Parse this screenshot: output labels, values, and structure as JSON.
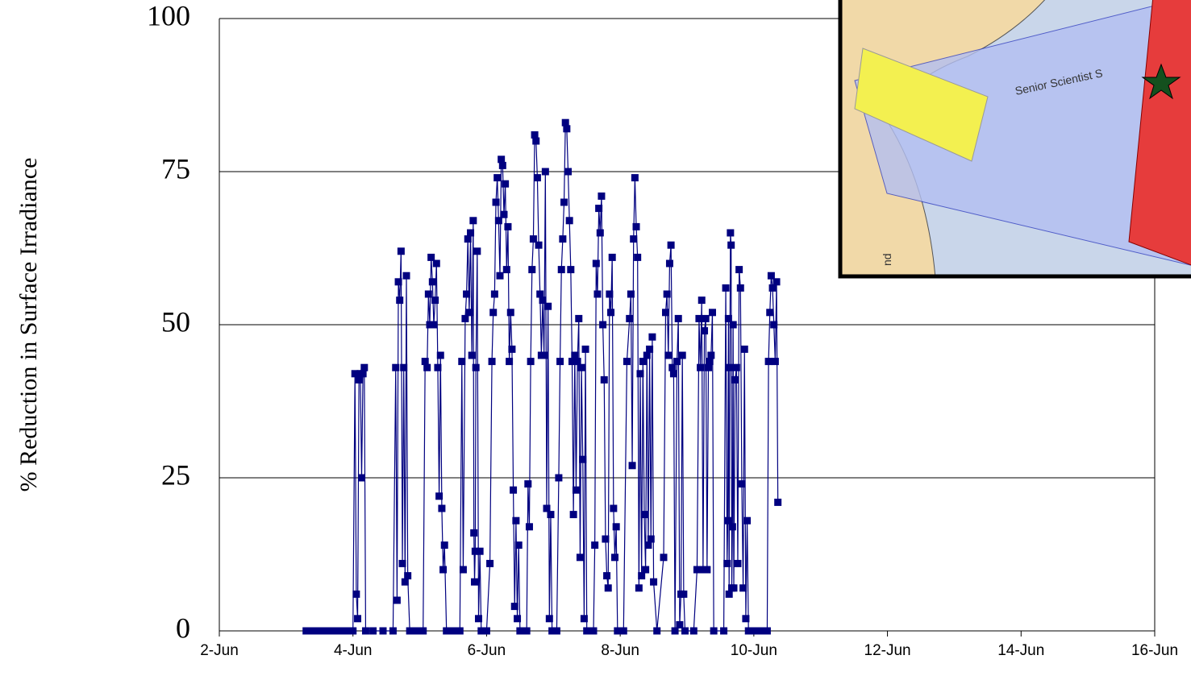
{
  "chart_data": {
    "type": "line",
    "ylabel": "% Reduction in Surface Irradiance",
    "xlim": [
      2,
      16
    ],
    "xticks": [
      {
        "value": 2,
        "label": "2-Jun"
      },
      {
        "value": 4,
        "label": "4-Jun"
      },
      {
        "value": 6,
        "label": "6-Jun"
      },
      {
        "value": 8,
        "label": "8-Jun"
      },
      {
        "value": 10,
        "label": "10-Jun"
      },
      {
        "value": 12,
        "label": "12-Jun"
      },
      {
        "value": 14,
        "label": "14-Jun"
      },
      {
        "value": 16,
        "label": "16-Jun"
      }
    ],
    "ylim": [
      0,
      100
    ],
    "yticks": [
      0,
      25,
      50,
      75,
      100
    ],
    "grid": true,
    "series": [
      {
        "color": "#000080",
        "x": [
          3.3,
          3.4,
          3.5,
          3.6,
          3.7,
          3.8,
          3.9,
          4.0,
          4.03,
          4.05,
          4.07,
          4.09,
          4.11,
          4.13,
          4.15,
          4.17,
          4.19,
          4.3,
          4.45,
          4.6,
          4.64,
          4.66,
          4.68,
          4.7,
          4.72,
          4.74,
          4.76,
          4.78,
          4.8,
          4.82,
          4.85,
          4.95,
          5.05,
          5.08,
          5.11,
          5.13,
          5.15,
          5.17,
          5.19,
          5.21,
          5.23,
          5.25,
          5.27,
          5.29,
          5.31,
          5.33,
          5.35,
          5.37,
          5.4,
          5.5,
          5.6,
          5.63,
          5.65,
          5.68,
          5.7,
          5.72,
          5.74,
          5.76,
          5.78,
          5.8,
          5.81,
          5.82,
          5.83,
          5.84,
          5.86,
          5.88,
          5.9,
          5.92,
          6.0,
          6.05,
          6.08,
          6.1,
          6.12,
          6.14,
          6.16,
          6.18,
          6.2,
          6.22,
          6.24,
          6.26,
          6.28,
          6.3,
          6.32,
          6.34,
          6.36,
          6.38,
          6.4,
          6.42,
          6.44,
          6.46,
          6.48,
          6.5,
          6.6,
          6.62,
          6.64,
          6.66,
          6.68,
          6.7,
          6.72,
          6.74,
          6.76,
          6.78,
          6.8,
          6.82,
          6.84,
          6.86,
          6.88,
          6.9,
          6.92,
          6.94,
          6.96,
          6.98,
          7.05,
          7.08,
          7.1,
          7.12,
          7.14,
          7.16,
          7.18,
          7.2,
          7.22,
          7.24,
          7.26,
          7.28,
          7.3,
          7.32,
          7.34,
          7.36,
          7.38,
          7.4,
          7.42,
          7.44,
          7.46,
          7.48,
          7.5,
          7.6,
          7.62,
          7.64,
          7.66,
          7.68,
          7.7,
          7.72,
          7.74,
          7.76,
          7.78,
          7.8,
          7.82,
          7.84,
          7.86,
          7.88,
          7.9,
          7.92,
          7.94,
          7.96,
          8.05,
          8.1,
          8.14,
          8.16,
          8.18,
          8.2,
          8.22,
          8.24,
          8.26,
          8.28,
          8.3,
          8.32,
          8.34,
          8.36,
          8.38,
          8.4,
          8.42,
          8.44,
          8.46,
          8.48,
          8.5,
          8.55,
          8.65,
          8.68,
          8.7,
          8.72,
          8.74,
          8.76,
          8.78,
          8.8,
          8.82,
          8.85,
          8.87,
          8.89,
          8.91,
          8.93,
          8.95,
          8.97,
          9.1,
          9.15,
          9.18,
          9.2,
          9.22,
          9.24,
          9.26,
          9.28,
          9.3,
          9.32,
          9.34,
          9.36,
          9.38,
          9.4,
          9.55,
          9.58,
          9.6,
          9.61,
          9.62,
          9.63,
          9.64,
          9.65,
          9.66,
          9.67,
          9.68,
          9.69,
          9.7,
          9.72,
          9.74,
          9.76,
          9.78,
          9.8,
          9.82,
          9.84,
          9.86,
          9.88,
          9.9,
          9.92,
          10.0,
          10.1,
          10.2,
          10.22,
          10.24,
          10.26,
          10.28,
          10.3,
          10.32,
          10.34,
          10.36
        ],
        "values": [
          0,
          0,
          0,
          0,
          0,
          0,
          0,
          0,
          42,
          6,
          2,
          41,
          42,
          25,
          42,
          43,
          0,
          0,
          0,
          0,
          43,
          5,
          57,
          54,
          62,
          11,
          43,
          8,
          58,
          9,
          0,
          0,
          0,
          44,
          43,
          55,
          50,
          61,
          57,
          50,
          54,
          60,
          43,
          22,
          45,
          20,
          10,
          14,
          0,
          0,
          0,
          44,
          10,
          51,
          55,
          64,
          52,
          65,
          45,
          67,
          16,
          8,
          13,
          43,
          62,
          2,
          13,
          0,
          0,
          11,
          44,
          52,
          55,
          70,
          74,
          67,
          58,
          77,
          76,
          68,
          73,
          59,
          66,
          44,
          52,
          46,
          23,
          4,
          18,
          2,
          14,
          0,
          0,
          24,
          17,
          44,
          59,
          64,
          81,
          80,
          74,
          63,
          55,
          45,
          54,
          45,
          75,
          20,
          53,
          2,
          19,
          0,
          0,
          25,
          44,
          59,
          64,
          70,
          83,
          82,
          75,
          67,
          59,
          44,
          19,
          45,
          23,
          44,
          51,
          12,
          43,
          28,
          2,
          46,
          0,
          0,
          14,
          60,
          55,
          69,
          65,
          71,
          50,
          41,
          15,
          9,
          7,
          55,
          52,
          61,
          20,
          12,
          17,
          0,
          0,
          44,
          51,
          55,
          27,
          64,
          74,
          66,
          61,
          7,
          42,
          9,
          44,
          19,
          10,
          45,
          14,
          46,
          15,
          48,
          8,
          0,
          12,
          52,
          55,
          45,
          60,
          63,
          43,
          42,
          0,
          44,
          51,
          1,
          6,
          45,
          6,
          0,
          0,
          10,
          51,
          43,
          54,
          10,
          49,
          51,
          10,
          43,
          44,
          45,
          52,
          0,
          0,
          56,
          11,
          18,
          51,
          6,
          43,
          65,
          63,
          7,
          17,
          50,
          7,
          41,
          43,
          11,
          59,
          56,
          24,
          7,
          46,
          2,
          18,
          0,
          0,
          0,
          0,
          44,
          52,
          58,
          56,
          50,
          44,
          57,
          21
        ]
      }
    ]
  },
  "inset": {
    "labels": [
      "Senior Scientist S",
      "nd"
    ]
  }
}
